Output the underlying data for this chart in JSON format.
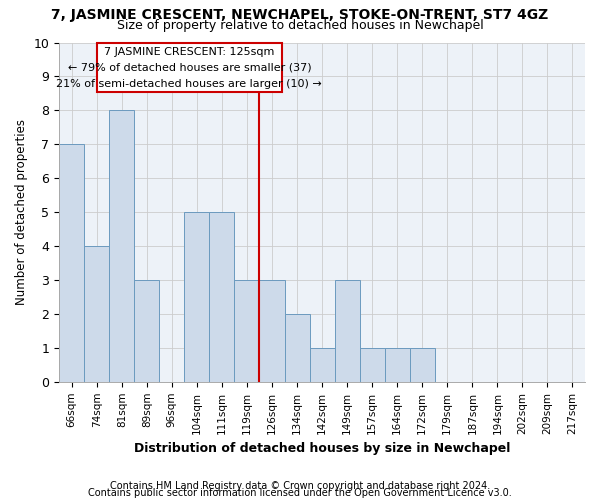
{
  "title": "7, JASMINE CRESCENT, NEWCHAPEL, STOKE-ON-TRENT, ST7 4GZ",
  "subtitle": "Size of property relative to detached houses in Newchapel",
  "xlabel": "Distribution of detached houses by size in Newchapel",
  "ylabel": "Number of detached properties",
  "categories": [
    "66sqm",
    "74sqm",
    "81sqm",
    "89sqm",
    "96sqm",
    "104sqm",
    "111sqm",
    "119sqm",
    "126sqm",
    "134sqm",
    "142sqm",
    "149sqm",
    "157sqm",
    "164sqm",
    "172sqm",
    "179sqm",
    "187sqm",
    "194sqm",
    "202sqm",
    "209sqm",
    "217sqm"
  ],
  "values": [
    7,
    4,
    8,
    3,
    0,
    5,
    5,
    3,
    3,
    2,
    1,
    3,
    1,
    1,
    1,
    0,
    0,
    0,
    0,
    0,
    0
  ],
  "bar_color": "#cddaea",
  "bar_edge_color": "#6b9abf",
  "vline_index": 8,
  "annotation_line1": "7 JASMINE CRESCENT: 125sqm",
  "annotation_line2": "← 79% of detached houses are smaller (37)",
  "annotation_line3": "21% of semi-detached houses are larger (10) →",
  "vline_color": "#cc0000",
  "annotation_box_color": "#cc0000",
  "ylim": [
    0,
    10
  ],
  "yticks": [
    0,
    1,
    2,
    3,
    4,
    5,
    6,
    7,
    8,
    9,
    10
  ],
  "grid_color": "#cccccc",
  "bg_color": "#edf2f8",
  "footer_line1": "Contains HM Land Registry data © Crown copyright and database right 2024.",
  "footer_line2": "Contains public sector information licensed under the Open Government Licence v3.0."
}
